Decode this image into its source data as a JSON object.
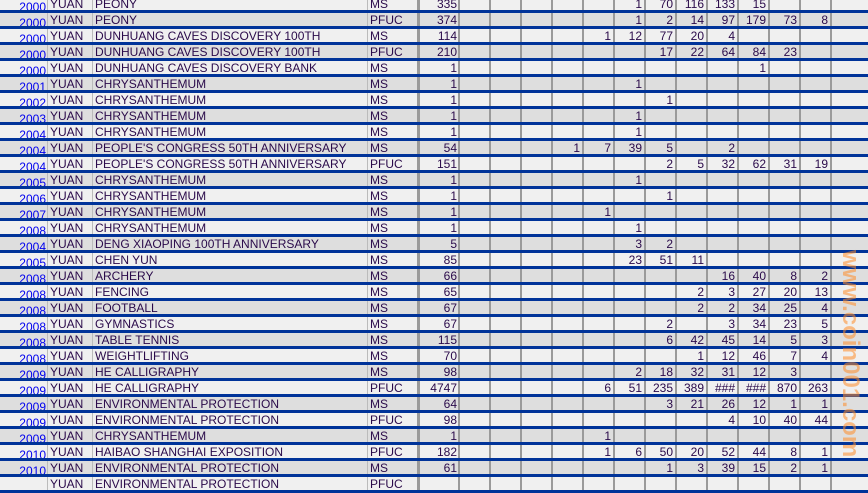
{
  "colors": {
    "row_border": "#003399",
    "year_link": "#0000ee",
    "row_light": "#f0f0f0",
    "row_dark": "#dedede",
    "watermark": "#ff8c28"
  },
  "watermark": "www.coin001.com",
  "rows": [
    {
      "year": "2000",
      "currency": "YUAN",
      "name": "PEONY",
      "type": "MS",
      "total": "335",
      "grades": [
        "",
        "",
        "",
        "",
        "",
        "1",
        "70",
        "116",
        "133",
        "15",
        "",
        "",
        ""
      ]
    },
    {
      "year": "2000",
      "currency": "YUAN",
      "name": "PEONY",
      "type": "PFUC",
      "total": "374",
      "grades": [
        "",
        "",
        "",
        "",
        "",
        "1",
        "2",
        "14",
        "97",
        "179",
        "73",
        "8",
        ""
      ]
    },
    {
      "year": "2000",
      "currency": "YUAN",
      "name": "DUNHUANG CAVES DISCOVERY 100TH",
      "type": "MS",
      "total": "114",
      "grades": [
        "",
        "",
        "",
        "",
        "1",
        "12",
        "77",
        "20",
        "4",
        "",
        "",
        "",
        ""
      ]
    },
    {
      "year": "2000",
      "currency": "YUAN",
      "name": "DUNHUANG CAVES DISCOVERY 100TH",
      "type": "PFUC",
      "total": "210",
      "grades": [
        "",
        "",
        "",
        "",
        "",
        "",
        "17",
        "22",
        "64",
        "84",
        "23",
        "",
        ""
      ]
    },
    {
      "year": "2000",
      "currency": "YUAN",
      "name": "DUNHUANG CAVES DISCOVERY BANK",
      "type": "MS",
      "total": "1",
      "grades": [
        "",
        "",
        "",
        "",
        "",
        "",
        "",
        "",
        "",
        "1",
        "",
        "",
        ""
      ]
    },
    {
      "year": "2001",
      "currency": "YUAN",
      "name": "CHRYSANTHEMUM",
      "type": "MS",
      "total": "1",
      "grades": [
        "",
        "",
        "",
        "",
        "",
        "1",
        "",
        "",
        "",
        "",
        "",
        "",
        ""
      ]
    },
    {
      "year": "2002",
      "currency": "YUAN",
      "name": "CHRYSANTHEMUM",
      "type": "MS",
      "total": "1",
      "grades": [
        "",
        "",
        "",
        "",
        "",
        "",
        "1",
        "",
        "",
        "",
        "",
        "",
        ""
      ]
    },
    {
      "year": "2003",
      "currency": "YUAN",
      "name": "CHRYSANTHEMUM",
      "type": "MS",
      "total": "1",
      "grades": [
        "",
        "",
        "",
        "",
        "",
        "1",
        "",
        "",
        "",
        "",
        "",
        "",
        ""
      ]
    },
    {
      "year": "2004",
      "currency": "YUAN",
      "name": "CHRYSANTHEMUM",
      "type": "MS",
      "total": "1",
      "grades": [
        "",
        "",
        "",
        "",
        "",
        "1",
        "",
        "",
        "",
        "",
        "",
        "",
        ""
      ]
    },
    {
      "year": "2004",
      "currency": "YUAN",
      "name": "PEOPLE'S CONGRESS 50TH ANNIVERSARY",
      "type": "MS",
      "total": "54",
      "grades": [
        "",
        "",
        "",
        "1",
        "7",
        "39",
        "5",
        "",
        "2",
        "",
        "",
        "",
        ""
      ]
    },
    {
      "year": "2004",
      "currency": "YUAN",
      "name": "PEOPLE'S CONGRESS 50TH ANNIVERSARY",
      "type": "PFUC",
      "total": "151",
      "grades": [
        "",
        "",
        "",
        "",
        "",
        "",
        "2",
        "5",
        "32",
        "62",
        "31",
        "19",
        ""
      ]
    },
    {
      "year": "2005",
      "currency": "YUAN",
      "name": "CHRYSANTHEMUM",
      "type": "MS",
      "total": "1",
      "grades": [
        "",
        "",
        "",
        "",
        "",
        "1",
        "",
        "",
        "",
        "",
        "",
        "",
        ""
      ]
    },
    {
      "year": "2006",
      "currency": "YUAN",
      "name": "CHRYSANTHEMUM",
      "type": "MS",
      "total": "1",
      "grades": [
        "",
        "",
        "",
        "",
        "",
        "",
        "1",
        "",
        "",
        "",
        "",
        "",
        ""
      ]
    },
    {
      "year": "2007",
      "currency": "YUAN",
      "name": "CHRYSANTHEMUM",
      "type": "MS",
      "total": "1",
      "grades": [
        "",
        "",
        "",
        "",
        "1",
        "",
        "",
        "",
        "",
        "",
        "",
        "",
        ""
      ]
    },
    {
      "year": "2008",
      "currency": "YUAN",
      "name": "CHRYSANTHEMUM",
      "type": "MS",
      "total": "1",
      "grades": [
        "",
        "",
        "",
        "",
        "",
        "1",
        "",
        "",
        "",
        "",
        "",
        "",
        ""
      ]
    },
    {
      "year": "2004",
      "currency": "YUAN",
      "name": "DENG XIAOPING 100TH ANNIVERSARY",
      "type": "MS",
      "total": "5",
      "grades": [
        "",
        "",
        "",
        "",
        "",
        "3",
        "2",
        "",
        "",
        "",
        "",
        "",
        ""
      ]
    },
    {
      "year": "2005",
      "currency": "YUAN",
      "name": "CHEN YUN",
      "type": "MS",
      "total": "85",
      "grades": [
        "",
        "",
        "",
        "",
        "",
        "23",
        "51",
        "11",
        "",
        "",
        "",
        "",
        ""
      ]
    },
    {
      "year": "2008",
      "currency": "YUAN",
      "name": "ARCHERY",
      "type": "MS",
      "total": "66",
      "grades": [
        "",
        "",
        "",
        "",
        "",
        "",
        "",
        "",
        "16",
        "40",
        "8",
        "2",
        ""
      ]
    },
    {
      "year": "2008",
      "currency": "YUAN",
      "name": "FENCING",
      "type": "MS",
      "total": "65",
      "grades": [
        "",
        "",
        "",
        "",
        "",
        "",
        "",
        "2",
        "3",
        "27",
        "20",
        "13",
        ""
      ]
    },
    {
      "year": "2008",
      "currency": "YUAN",
      "name": "FOOTBALL",
      "type": "MS",
      "total": "67",
      "grades": [
        "",
        "",
        "",
        "",
        "",
        "",
        "",
        "2",
        "2",
        "34",
        "25",
        "4",
        ""
      ]
    },
    {
      "year": "2008",
      "currency": "YUAN",
      "name": "GYMNASTICS",
      "type": "MS",
      "total": "67",
      "grades": [
        "",
        "",
        "",
        "",
        "",
        "",
        "2",
        "",
        "3",
        "34",
        "23",
        "5",
        ""
      ]
    },
    {
      "year": "2008",
      "currency": "YUAN",
      "name": "TABLE TENNIS",
      "type": "MS",
      "total": "115",
      "grades": [
        "",
        "",
        "",
        "",
        "",
        "",
        "6",
        "42",
        "45",
        "14",
        "5",
        "3",
        ""
      ]
    },
    {
      "year": "2008",
      "currency": "YUAN",
      "name": "WEIGHTLIFTING",
      "type": "MS",
      "total": "70",
      "grades": [
        "",
        "",
        "",
        "",
        "",
        "",
        "",
        "1",
        "12",
        "46",
        "7",
        "4",
        ""
      ]
    },
    {
      "year": "2009",
      "currency": "YUAN",
      "name": "HE CALLIGRAPHY",
      "type": "MS",
      "total": "98",
      "grades": [
        "",
        "",
        "",
        "",
        "",
        "2",
        "18",
        "32",
        "31",
        "12",
        "3",
        "",
        ""
      ]
    },
    {
      "year": "2009",
      "currency": "YUAN",
      "name": "HE CALLIGRAPHY",
      "type": "PFUC",
      "total": "4747",
      "grades": [
        "",
        "",
        "",
        "",
        "6",
        "51",
        "235",
        "389",
        "###",
        "###",
        "870",
        "263",
        ""
      ]
    },
    {
      "year": "2009",
      "currency": "YUAN",
      "name": "ENVIRONMENTAL PROTECTION",
      "type": "MS",
      "total": "64",
      "grades": [
        "",
        "",
        "",
        "",
        "",
        "",
        "3",
        "21",
        "26",
        "12",
        "1",
        "1",
        ""
      ]
    },
    {
      "year": "2009",
      "currency": "YUAN",
      "name": "ENVIRONMENTAL PROTECTION",
      "type": "PFUC",
      "total": "98",
      "grades": [
        "",
        "",
        "",
        "",
        "",
        "",
        "",
        "",
        "4",
        "10",
        "40",
        "44",
        ""
      ]
    },
    {
      "year": "2009",
      "currency": "YUAN",
      "name": "CHRYSANTHEMUM",
      "type": "MS",
      "total": "1",
      "grades": [
        "",
        "",
        "",
        "",
        "1",
        "",
        "",
        "",
        "",
        "",
        "",
        "",
        ""
      ]
    },
    {
      "year": "2010",
      "currency": "YUAN",
      "name": "HAIBAO SHANGHAI EXPOSITION",
      "type": "PFUC",
      "total": "182",
      "grades": [
        "",
        "",
        "",
        "",
        "1",
        "6",
        "50",
        "20",
        "52",
        "44",
        "8",
        "1",
        ""
      ]
    },
    {
      "year": "2010",
      "currency": "YUAN",
      "name": "ENVIRONMENTAL PROTECTION",
      "type": "MS",
      "total": "61",
      "grades": [
        "",
        "",
        "",
        "",
        "",
        "",
        "1",
        "3",
        "39",
        "15",
        "2",
        "1",
        ""
      ]
    },
    {
      "year": "",
      "currency": "YUAN",
      "name": "ENVIRONMENTAL PROTECTION",
      "type": "PFUC",
      "total": "",
      "grades": [
        "",
        "",
        "",
        "",
        "",
        "",
        "",
        "",
        "",
        "",
        "",
        "",
        ""
      ]
    }
  ]
}
